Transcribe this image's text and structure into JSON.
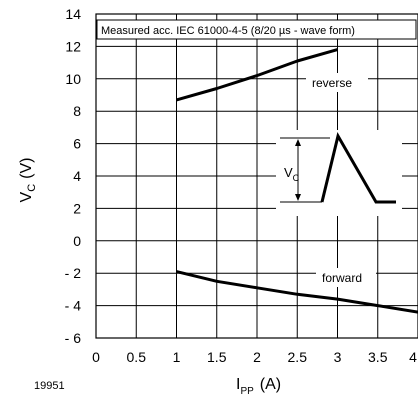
{
  "chart_data": {
    "type": "line",
    "annotation": "Measured acc. IEC 61000-4-5 (8/20 µs - wave form)",
    "figure_number": "19951",
    "ylabel_main": "V",
    "ylabel_sub": "C",
    "ylabel_unit": "(V)",
    "xlabel_main": "I",
    "xlabel_sub": "PP",
    "xlabel_unit": "(A)",
    "xlim": [
      0,
      4
    ],
    "ylim": [
      -6,
      14
    ],
    "grid": true,
    "x_ticks": [
      0,
      0.5,
      1,
      1.5,
      2,
      2.5,
      3,
      3.5,
      4
    ],
    "x_tick_labels": [
      "0",
      "0.5",
      "1",
      "1.5",
      "2",
      "2.5",
      "3",
      "3.5",
      "4"
    ],
    "y_ticks": [
      -6,
      -4,
      -2,
      0,
      2,
      4,
      6,
      8,
      10,
      12,
      14
    ],
    "y_tick_labels": [
      "- 6",
      "- 4",
      "- 2",
      "0",
      "2",
      "4",
      "6",
      "8",
      "10",
      "12",
      "14"
    ],
    "series": [
      {
        "name": "reverse",
        "x": [
          1,
          1.5,
          2,
          2.5,
          3
        ],
        "y": [
          8.7,
          9.4,
          10.2,
          11.1,
          11.8
        ]
      },
      {
        "name": "forward",
        "x": [
          1,
          1.5,
          2,
          2.5,
          3,
          3.5,
          4
        ],
        "y": [
          -1.9,
          -2.5,
          -2.9,
          -3.3,
          -3.6,
          -4.0,
          -4.4
        ]
      }
    ],
    "inset": {
      "symbol_main": "V",
      "symbol_sub": "C",
      "description": "surge waveform"
    }
  }
}
